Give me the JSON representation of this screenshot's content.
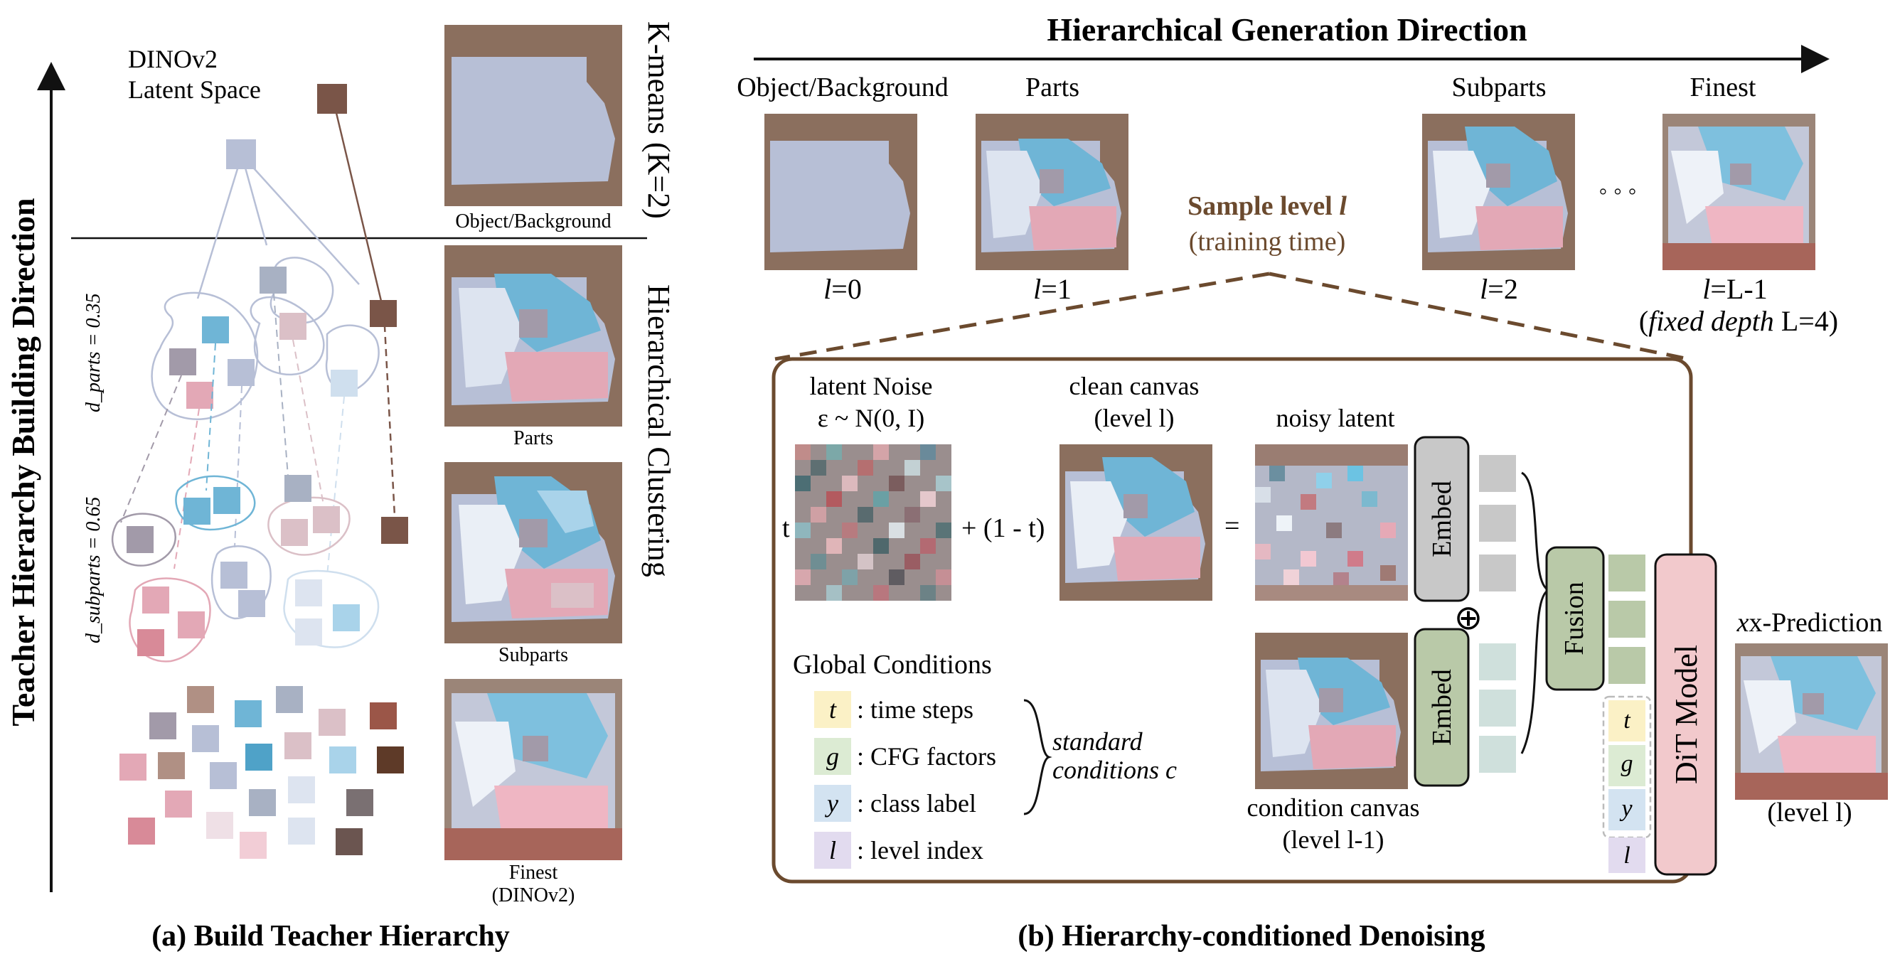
{
  "left": {
    "vertical_title": "Teacher Hierarchy Building Direction",
    "latent_space": [
      "DINOv2",
      "Latent Space"
    ],
    "kmeans_label": "K-means (K=2)",
    "hier_clustering_label": "Hierarchical Clustering",
    "d_parts_label": "d_parts = 0.35",
    "d_subparts_label": "d_subparts = 0.65",
    "thumb_labels": [
      "Object/Background",
      "Parts",
      "Subparts",
      "Finest",
      "(DINOv2)"
    ],
    "caption": "(a) Build Teacher Hierarchy"
  },
  "right": {
    "top_title": "Hierarchical Generation Direction",
    "levels": [
      {
        "name": "Object/Background",
        "sym": "l",
        "val": "=0"
      },
      {
        "name": "Parts",
        "sym": "l",
        "val": "=1"
      },
      {
        "name": "Subparts",
        "sym": "l",
        "val": "=2"
      },
      {
        "name": "Finest",
        "sym": "l",
        "val": "=L-1"
      }
    ],
    "dots": "◦ ◦ ◦",
    "fixed_depth": {
      "italic": "fixed depth",
      "rest": " L=4)"
    },
    "sample_level": "Sample level",
    "sample_level_sym": "l",
    "training_time": "(training time)",
    "latent_noise": "latent Noise",
    "noise_formula": "ε ~ N(0, I)",
    "clean_canvas": "clean canvas",
    "clean_canvas_level": "(level l)",
    "noisy_latent": "noisy latent",
    "t": "t",
    "plus_one_minus_t": "+ (1 - t)",
    "equals": "=",
    "embed": "Embed",
    "fusion": "Fusion",
    "dit": "DiT Model",
    "x_prediction": "x-Prediction",
    "x_prediction_level": "(level l)",
    "oplus": "⊕",
    "global_conditions": "Global Conditions",
    "conditions": [
      {
        "sym": "t",
        "text": ": time steps",
        "color": "#fbf1c6"
      },
      {
        "sym": "g",
        "text": ": CFG factors",
        "color": "#dcebd3"
      },
      {
        "sym": "y",
        "text": ": class label",
        "color": "#d3e3f1"
      },
      {
        "sym": "l",
        "text": ": level index",
        "color": "#e2dbef"
      }
    ],
    "standard_conditions": [
      "standard",
      "conditions c"
    ],
    "condition_canvas": "condition canvas",
    "condition_canvas_level": "(level l-1)",
    "caption": "(b) Hierarchy-conditioned Denoising"
  },
  "colors": {
    "brown": "#8b6f5e",
    "lavender": "#b7bfd6",
    "sky": "#6fb5d6",
    "pink": "#e3a8b6",
    "box_brown": "#6b4a2e",
    "embed_grey": "#c8c8c8",
    "fusion_green": "#b9c9a8",
    "dit_pink": "#f2c9cc"
  }
}
